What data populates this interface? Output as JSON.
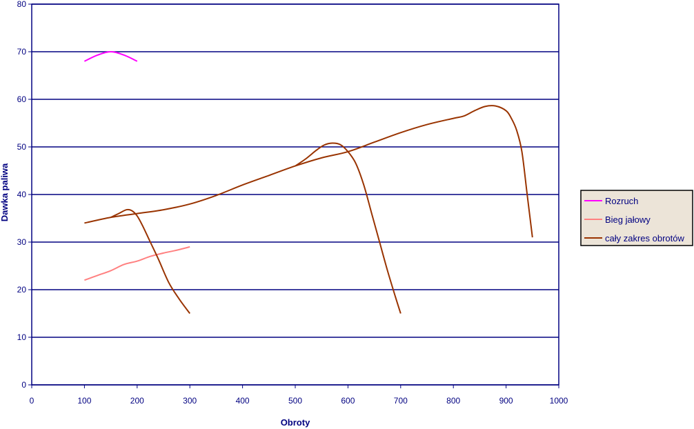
{
  "chart_data": {
    "type": "line",
    "title": "",
    "xlabel": "Obroty",
    "ylabel": "Dawka paliwa",
    "xlim": [
      0,
      1000
    ],
    "ylim": [
      0,
      80
    ],
    "x_ticks": [
      0,
      100,
      200,
      300,
      400,
      500,
      600,
      700,
      800,
      900,
      1000
    ],
    "y_ticks": [
      0,
      10,
      20,
      30,
      40,
      50,
      60,
      70,
      80
    ],
    "grid": "horizontal",
    "legend_position": "right",
    "series": [
      {
        "name": "Rozruch",
        "color": "#ff00ff",
        "points": [
          [
            100,
            68
          ],
          [
            125,
            69.3
          ],
          [
            150,
            70
          ],
          [
            175,
            69.3
          ],
          [
            200,
            68
          ]
        ]
      },
      {
        "name": "Bieg jałowy",
        "color": "#ff8080",
        "points": [
          [
            100,
            22
          ],
          [
            125,
            23
          ],
          [
            150,
            24
          ],
          [
            175,
            25.3
          ],
          [
            200,
            26
          ],
          [
            225,
            27
          ],
          [
            250,
            27.7
          ],
          [
            275,
            28.3
          ],
          [
            300,
            29
          ]
        ]
      },
      {
        "name": "cały zakres obrotów",
        "color": "#993300",
        "points": [
          [
            100,
            34
          ],
          [
            150,
            35.2
          ],
          [
            200,
            36
          ],
          [
            250,
            36.8
          ],
          [
            300,
            38
          ],
          [
            350,
            39.8
          ],
          [
            400,
            42
          ],
          [
            450,
            44
          ],
          [
            500,
            46
          ],
          [
            550,
            47.7
          ],
          [
            600,
            49
          ],
          [
            650,
            51
          ],
          [
            700,
            53
          ],
          [
            750,
            54.7
          ],
          [
            800,
            56
          ],
          [
            820,
            56.5
          ],
          [
            840,
            57.6
          ],
          [
            860,
            58.5
          ],
          [
            880,
            58.6
          ],
          [
            900,
            57.6
          ],
          [
            910,
            56
          ],
          [
            920,
            53.5
          ],
          [
            930,
            49
          ],
          [
            940,
            40
          ],
          [
            950,
            31
          ]
        ]
      },
      {
        "name": "",
        "color": "#993300",
        "points": [
          [
            150,
            35.2
          ],
          [
            165,
            36
          ],
          [
            180,
            36.8
          ],
          [
            190,
            36.6
          ],
          [
            200,
            35.5
          ],
          [
            210,
            33.5
          ],
          [
            225,
            30
          ],
          [
            240,
            26.5
          ],
          [
            260,
            21.5
          ],
          [
            280,
            18
          ],
          [
            300,
            15
          ]
        ]
      },
      {
        "name": "",
        "color": "#993300",
        "points": [
          [
            500,
            46
          ],
          [
            520,
            47.5
          ],
          [
            540,
            49.3
          ],
          [
            555,
            50.4
          ],
          [
            570,
            50.8
          ],
          [
            585,
            50.5
          ],
          [
            600,
            49
          ],
          [
            615,
            46.5
          ],
          [
            630,
            42
          ],
          [
            645,
            36
          ],
          [
            660,
            30
          ],
          [
            675,
            24
          ],
          [
            690,
            18.5
          ],
          [
            700,
            15
          ]
        ]
      }
    ]
  }
}
